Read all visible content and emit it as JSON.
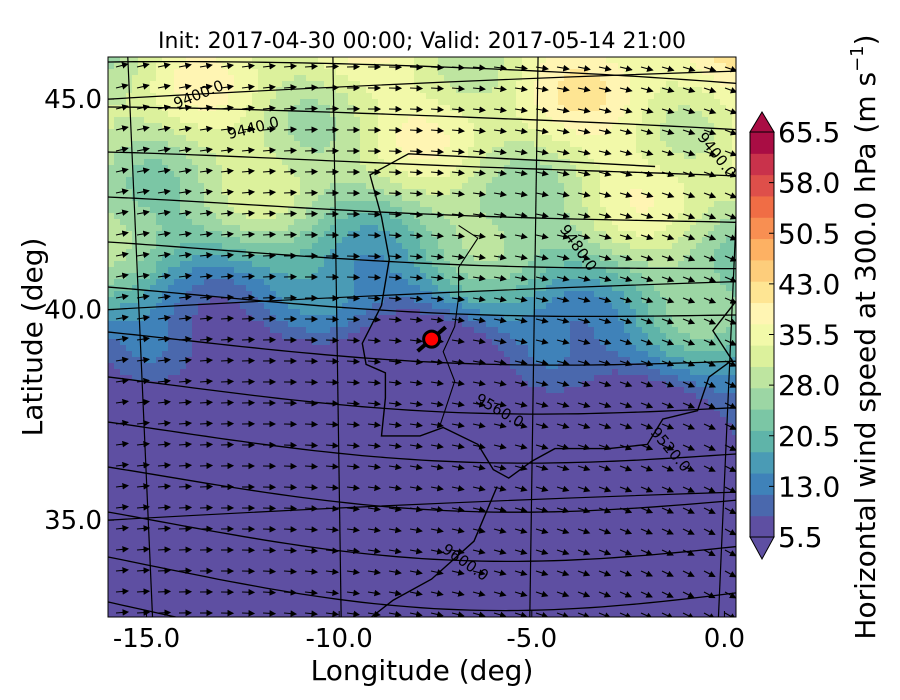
{
  "chart_data": {
    "type": "heatmap",
    "title": "Init: 2017-04-30 00:00; Valid: 2017-05-14 21:00",
    "xlabel": "Longitude (deg)",
    "ylabel": "Latitude (deg)",
    "xlim": [
      -16.0,
      0.3
    ],
    "ylim": [
      32.7,
      46.0
    ],
    "xticks": [
      {
        "value": -15.0,
        "label": "-15.0"
      },
      {
        "value": -10.0,
        "label": "-10.0"
      },
      {
        "value": -5.0,
        "label": "-5.0"
      },
      {
        "value": 0.0,
        "label": "0.0"
      }
    ],
    "yticks": [
      {
        "value": 45.0,
        "label": "45.0"
      },
      {
        "value": 40.0,
        "label": "40.0"
      },
      {
        "value": 35.0,
        "label": "35.0"
      }
    ],
    "colorbar": {
      "label": "Horizontal wind speed at 300.0 hPa (m s$^{-1}$)",
      "label_main": "Horizontal wind speed at 300.0 hPa (m s",
      "label_exp": "−1",
      "label_close": ")",
      "min": 5.5,
      "max": 65.5,
      "step": 2.5,
      "extend": "both",
      "ticks": [
        "5.5",
        "13.0",
        "20.5",
        "28.0",
        "35.5",
        "43.0",
        "50.5",
        "58.0",
        "65.5"
      ]
    },
    "contour_labels": [
      {
        "text": "9400.0",
        "lon": -13.6,
        "lat": 45.0,
        "angle": -22
      },
      {
        "text": "9440.0",
        "lon": -12.2,
        "lat": 44.2,
        "angle": -14
      },
      {
        "text": "9400.0",
        "lon": -0.3,
        "lat": 43.6,
        "angle": 52
      },
      {
        "text": "9480.0",
        "lon": -3.9,
        "lat": 41.4,
        "angle": 55
      },
      {
        "text": "9560.0",
        "lon": -5.9,
        "lat": 37.5,
        "angle": 30
      },
      {
        "text": "9520.0",
        "lon": -1.5,
        "lat": 36.6,
        "angle": 50
      },
      {
        "text": "9600.0",
        "lon": -6.8,
        "lat": 33.9,
        "angle": 35
      }
    ],
    "marker": {
      "lon": -7.6,
      "lat": 39.3,
      "color": "#ff0000"
    },
    "colors": [
      "#5e4fa2",
      "#4a68ad",
      "#3f82b9",
      "#4a9bb5",
      "#5fb4a9",
      "#7bc6a5",
      "#9cd6a4",
      "#bee5a0",
      "#dcf19c",
      "#f2f9a9",
      "#fff5b3",
      "#fee593",
      "#fdcd7b",
      "#fdb163",
      "#f88f52",
      "#f06d45",
      "#de4f4a",
      "#c9324b",
      "#a90d44"
    ]
  }
}
